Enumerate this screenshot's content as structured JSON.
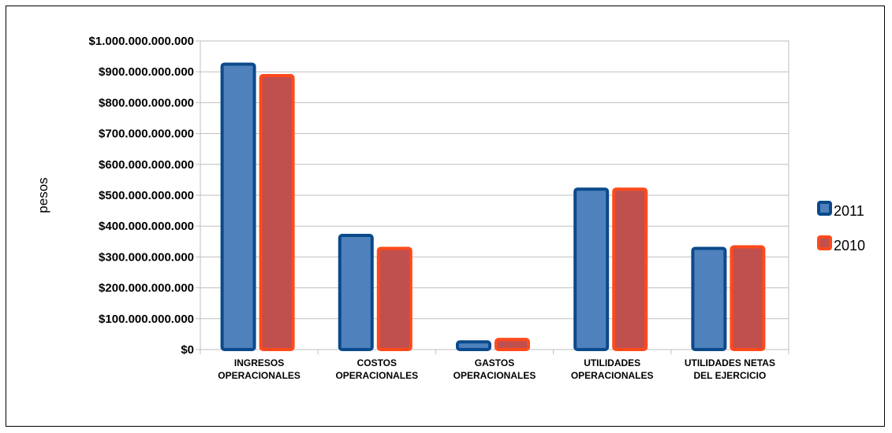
{
  "chart_data": {
    "type": "bar",
    "title": "",
    "xlabel": "",
    "ylabel": "pesos",
    "ylim": [
      0,
      1000000000000
    ],
    "grid": true,
    "legend_position": "right",
    "yticks": [
      0,
      100000000000,
      200000000000,
      300000000000,
      400000000000,
      500000000000,
      600000000000,
      700000000000,
      800000000000,
      900000000000,
      1000000000000
    ],
    "ytick_labels": [
      "$0",
      "$100.000.000.000",
      "$200.000.000.000",
      "$300.000.000.000",
      "$400.000.000.000",
      "$500.000.000.000",
      "$600.000.000.000",
      "$700.000.000.000",
      "$800.000.000.000",
      "$900.000.000.000",
      "$1.000.000.000.000"
    ],
    "categories": [
      [
        "INGRESOS",
        "OPERACIONALES"
      ],
      [
        "COSTOS",
        "OPERACIONALES"
      ],
      [
        "GASTOS",
        "OPERACIONALES"
      ],
      [
        "UTILIDADES",
        "OPERACIONALES"
      ],
      [
        "UTILIDADES NETAS",
        "DEL EJERCICIO"
      ]
    ],
    "series": [
      {
        "name": "2011",
        "values": [
          930000000000,
          375000000000,
          30000000000,
          525000000000,
          333000000000
        ],
        "fill": "#4F81BD",
        "stroke": "#0B4A8B"
      },
      {
        "name": "2010",
        "values": [
          893000000000,
          333000000000,
          38000000000,
          525000000000,
          338000000000
        ],
        "fill": "#C0504D",
        "stroke": "#FF4A1C"
      }
    ]
  }
}
